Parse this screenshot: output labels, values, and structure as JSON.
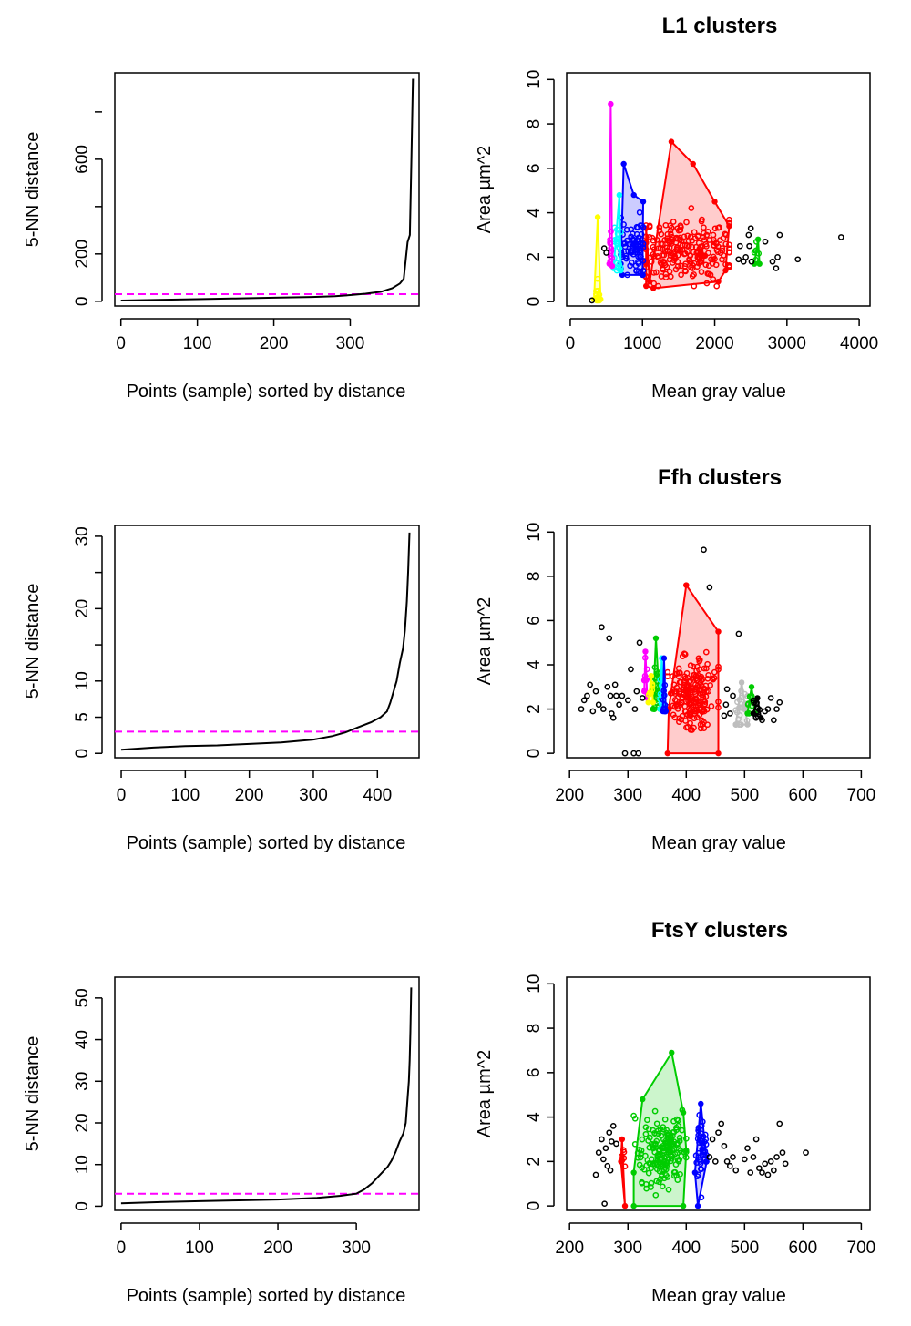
{
  "chart_data": [
    {
      "type": "line",
      "xlabel": "Points (sample) sorted by distance",
      "ylabel": "5-NN distance",
      "xticks": [
        0,
        100,
        200,
        300
      ],
      "yticks": [
        0,
        200,
        600
      ],
      "xlim": [
        -8,
        390
      ],
      "ylim": [
        -20,
        965
      ],
      "threshold": 30,
      "threshold_color": "#ff00ff",
      "series": [
        {
          "x": [
            0,
            50,
            100,
            150,
            200,
            250,
            280,
            300,
            320,
            340,
            355,
            365,
            370,
            375,
            378,
            380,
            382
          ],
          "y": [
            3,
            6,
            9,
            12,
            15,
            18,
            21,
            26,
            32,
            40,
            55,
            75,
            95,
            250,
            280,
            600,
            940
          ]
        }
      ]
    },
    {
      "type": "scatter",
      "title": "L1 clusters",
      "xlabel": "Mean gray value",
      "ylabel": "Area µm^2",
      "xticks": [
        0,
        1000,
        2000,
        3000,
        4000
      ],
      "yticks": [
        0,
        2,
        4,
        6,
        8,
        10
      ],
      "xlim": [
        -50,
        4150
      ],
      "ylim": [
        -0.2,
        10.3
      ],
      "clusters": [
        {
          "color": "#ff0000",
          "hull": [
            [
              1100,
              0.9
            ],
            [
              1400,
              7.2
            ],
            [
              1700,
              6.2
            ],
            [
              2000,
              4.5
            ],
            [
              2200,
              3.4
            ],
            [
              2150,
              1.4
            ],
            [
              2050,
              0.9
            ],
            [
              1150,
              0.6
            ],
            [
              1050,
              0.7
            ],
            [
              1050,
              3.3
            ]
          ],
          "cx": 1600,
          "cy": 2.3,
          "sx": 350,
          "sy": 0.7,
          "n": 240,
          "ymin": 0.7,
          "ymax": 4.4,
          "seed": 11
        },
        {
          "color": "#0000ff",
          "hull": [
            [
              700,
              1.7
            ],
            [
              740,
              6.2
            ],
            [
              880,
              4.8
            ],
            [
              1010,
              4.5
            ],
            [
              1000,
              1.2
            ],
            [
              720,
              1.2
            ]
          ],
          "cx": 860,
          "cy": 2.5,
          "sx": 90,
          "sy": 0.6,
          "n": 75,
          "ymin": 1.2,
          "ymax": 4.4,
          "seed": 22
        },
        {
          "color": "#00ffff",
          "hull": [
            [
              600,
              1.5
            ],
            [
              680,
              4.8
            ],
            [
              700,
              1.4
            ]
          ],
          "cx": 650,
          "cy": 2.2,
          "sx": 25,
          "sy": 0.6,
          "n": 18,
          "ymin": 1.4,
          "ymax": 4.6,
          "seed": 33
        },
        {
          "color": "#ff00ff",
          "hull": [
            [
              540,
              1.7
            ],
            [
              560,
              8.9
            ],
            [
              580,
              1.6
            ]
          ],
          "cx": 560,
          "cy": 2.2,
          "sx": 12,
          "sy": 0.4,
          "n": 10,
          "ymin": 1.5,
          "ymax": 3.2,
          "seed": 44
        },
        {
          "color": "#ffff00",
          "hull": [
            [
              330,
              0.1
            ],
            [
              380,
              3.8
            ],
            [
              420,
              0.1
            ]
          ],
          "cx": 380,
          "cy": 0.3,
          "sx": 20,
          "sy": 0.3,
          "n": 12,
          "ymin": 0.05,
          "ymax": 2.4,
          "seed": 55
        },
        {
          "color": "#00cc00",
          "hull": [
            [
              2550,
              1.7
            ],
            [
              2600,
              2.8
            ],
            [
              2620,
              1.7
            ]
          ],
          "cx": 2580,
          "cy": 2.0,
          "sx": 20,
          "sy": 0.3,
          "n": 6,
          "ymin": 1.7,
          "ymax": 2.8,
          "seed": 66
        }
      ],
      "noise": [
        [
          300,
          0.05
        ],
        [
          470,
          2.4
        ],
        [
          500,
          2.2
        ],
        [
          2330,
          1.9
        ],
        [
          2350,
          2.5
        ],
        [
          2400,
          1.8
        ],
        [
          2430,
          2.0
        ],
        [
          2470,
          3.0
        ],
        [
          2480,
          2.5
        ],
        [
          2500,
          3.3
        ],
        [
          2510,
          1.8
        ],
        [
          2700,
          2.7
        ],
        [
          2800,
          1.8
        ],
        [
          2850,
          1.5
        ],
        [
          2870,
          2.0
        ],
        [
          2900,
          3.0
        ],
        [
          3150,
          1.9
        ],
        [
          3750,
          2.9
        ]
      ]
    },
    {
      "type": "line",
      "xlabel": "Points (sample) sorted by distance",
      "ylabel": "5-NN distance",
      "xticks": [
        0,
        100,
        200,
        300,
        400
      ],
      "yticks": [
        0,
        5,
        10,
        20,
        30
      ],
      "xlim": [
        -10,
        465
      ],
      "ylim": [
        -0.6,
        31.5
      ],
      "threshold": 3,
      "threshold_color": "#ff00ff",
      "series": [
        {
          "x": [
            0,
            50,
            100,
            150,
            200,
            250,
            300,
            330,
            350,
            370,
            390,
            405,
            415,
            420,
            425,
            430,
            435,
            440,
            443,
            446,
            448,
            450
          ],
          "y": [
            0.5,
            0.8,
            1.0,
            1.1,
            1.3,
            1.5,
            1.9,
            2.4,
            2.9,
            3.6,
            4.3,
            5.0,
            5.8,
            7,
            8.5,
            10,
            12.5,
            14.5,
            17,
            21,
            25,
            30.5
          ]
        }
      ]
    },
    {
      "type": "scatter",
      "title": "Ffh clusters",
      "xlabel": "Mean gray value",
      "ylabel": "Area µm^2",
      "xticks": [
        200,
        300,
        400,
        500,
        600,
        700
      ],
      "yticks": [
        0,
        2,
        4,
        6,
        8,
        10
      ],
      "xlim": [
        195,
        715
      ],
      "ylim": [
        -0.2,
        10.3
      ],
      "clusters": [
        {
          "color": "#ff0000",
          "hull": [
            [
              370,
              2.0
            ],
            [
              400,
              7.6
            ],
            [
              455,
              5.5
            ],
            [
              455,
              0.0
            ],
            [
              368,
              0.0
            ]
          ],
          "cx": 410,
          "cy": 2.6,
          "sx": 22,
          "sy": 0.8,
          "n": 200,
          "ymin": 0.1,
          "ymax": 5.6,
          "seed": 77
        },
        {
          "color": "#bebebe",
          "hull": [
            [
              485,
              1.3
            ],
            [
              495,
              3.2
            ],
            [
              505,
              1.3
            ]
          ],
          "cx": 495,
          "cy": 2.0,
          "sx": 7,
          "sy": 0.4,
          "n": 25,
          "ymin": 1.3,
          "ymax": 3.2,
          "seed": 88
        },
        {
          "color": "#00cc00",
          "hull": [
            [
              343,
              2.0
            ],
            [
              348,
              5.2
            ],
            [
              355,
              2.0
            ]
          ],
          "cx": 349,
          "cy": 3.0,
          "sx": 4,
          "sy": 0.6,
          "n": 25,
          "ymin": 2.0,
          "ymax": 5.2,
          "seed": 99
        },
        {
          "color": "#00cc00",
          "hull": [
            [
              505,
              1.8
            ],
            [
              512,
              3.0
            ],
            [
              518,
              1.8
            ]
          ],
          "cx": 511,
          "cy": 2.3,
          "sx": 3,
          "sy": 0.3,
          "n": 10,
          "ymin": 1.8,
          "ymax": 3.0,
          "seed": 101
        },
        {
          "color": "#ff00ff",
          "hull": [
            [
              328,
              2.8
            ],
            [
              330,
              4.6
            ],
            [
              333,
              2.5
            ]
          ],
          "cx": 331,
          "cy": 3.3,
          "sx": 2,
          "sy": 0.5,
          "n": 10,
          "ymin": 2.5,
          "ymax": 4.6,
          "seed": 111
        },
        {
          "color": "#00ffff",
          "hull": [
            [
              355,
              2.0
            ],
            [
              358,
              4.3
            ],
            [
              362,
              2.0
            ]
          ],
          "cx": 358,
          "cy": 2.8,
          "sx": 2,
          "sy": 0.5,
          "n": 10,
          "ymin": 2.0,
          "ymax": 4.3,
          "seed": 121
        },
        {
          "color": "#0000ff",
          "hull": [
            [
              360,
              1.9
            ],
            [
              362,
              4.3
            ],
            [
              365,
              1.9
            ]
          ],
          "cx": 362,
          "cy": 2.6,
          "sx": 1.5,
          "sy": 0.5,
          "n": 10,
          "ymin": 1.9,
          "ymax": 4.3,
          "seed": 131
        },
        {
          "color": "#ffff00",
          "hull": [
            [
              335,
              2.3
            ],
            [
              340,
              3.5
            ],
            [
              343,
              2.3
            ]
          ],
          "cx": 339,
          "cy": 2.8,
          "sx": 2,
          "sy": 0.3,
          "n": 6,
          "ymin": 2.3,
          "ymax": 3.5,
          "seed": 141
        },
        {
          "color": "#000000",
          "hull": [
            [
              515,
              1.8
            ],
            [
              522,
              2.5
            ],
            [
              528,
              1.6
            ]
          ],
          "cx": 521,
          "cy": 2.0,
          "sx": 3,
          "sy": 0.3,
          "n": 10,
          "ymin": 1.6,
          "ymax": 2.5,
          "seed": 151
        }
      ],
      "noise": [
        [
          220,
          2.0
        ],
        [
          225,
          2.4
        ],
        [
          230,
          2.6
        ],
        [
          235,
          3.1
        ],
        [
          240,
          1.9
        ],
        [
          245,
          2.8
        ],
        [
          250,
          2.2
        ],
        [
          255,
          5.7
        ],
        [
          258,
          2.0
        ],
        [
          265,
          3.0
        ],
        [
          268,
          5.2
        ],
        [
          270,
          2.6
        ],
        [
          272,
          1.8
        ],
        [
          275,
          1.6
        ],
        [
          278,
          3.1
        ],
        [
          280,
          2.6
        ],
        [
          285,
          2.2
        ],
        [
          290,
          2.6
        ],
        [
          295,
          0.0
        ],
        [
          300,
          2.4
        ],
        [
          305,
          3.8
        ],
        [
          310,
          0.0
        ],
        [
          312,
          2.0
        ],
        [
          315,
          2.8
        ],
        [
          318,
          0.0
        ],
        [
          320,
          5.0
        ],
        [
          325,
          2.5
        ],
        [
          430,
          9.2
        ],
        [
          440,
          7.5
        ],
        [
          470,
          2.9
        ],
        [
          475,
          1.8
        ],
        [
          480,
          2.6
        ],
        [
          490,
          5.4
        ],
        [
          530,
          1.5
        ],
        [
          535,
          1.9
        ],
        [
          540,
          2.0
        ],
        [
          545,
          2.5
        ],
        [
          550,
          1.5
        ],
        [
          555,
          2.0
        ],
        [
          560,
          2.3
        ],
        [
          465,
          1.7
        ],
        [
          468,
          2.2
        ]
      ]
    },
    {
      "type": "line",
      "xlabel": "Points (sample) sorted by distance",
      "ylabel": "5-NN distance",
      "xticks": [
        0,
        100,
        200,
        300
      ],
      "yticks": [
        0,
        10,
        20,
        30,
        40,
        50
      ],
      "xlim": [
        -8,
        380
      ],
      "ylim": [
        -1,
        55
      ],
      "threshold": 3,
      "threshold_color": "#ff00ff",
      "series": [
        {
          "x": [
            0,
            50,
            100,
            150,
            200,
            250,
            280,
            300,
            310,
            320,
            330,
            340,
            345,
            350,
            355,
            360,
            363,
            365,
            367,
            368,
            369,
            370
          ],
          "y": [
            0.7,
            1.0,
            1.2,
            1.4,
            1.6,
            2.0,
            2.5,
            3.0,
            4.0,
            5.5,
            7.5,
            9.5,
            11,
            13,
            15.5,
            17.5,
            20,
            25,
            30,
            35,
            42,
            52.5
          ]
        }
      ]
    },
    {
      "type": "scatter",
      "title": "FtsY clusters",
      "xlabel": "Mean gray value",
      "ylabel": "Area µm^2",
      "xticks": [
        200,
        300,
        400,
        500,
        600,
        700
      ],
      "yticks": [
        0,
        2,
        4,
        6,
        8,
        10
      ],
      "xlim": [
        195,
        715
      ],
      "ylim": [
        -0.2,
        10.3
      ],
      "clusters": [
        {
          "color": "#00cc00",
          "hull": [
            [
              310,
              1.5
            ],
            [
              325,
              4.8
            ],
            [
              375,
              6.9
            ],
            [
              395,
              4.2
            ],
            [
              400,
              2.5
            ],
            [
              395,
              0.0
            ],
            [
              310,
              0.0
            ]
          ],
          "cx": 360,
          "cy": 2.5,
          "sx": 22,
          "sy": 0.8,
          "n": 180,
          "ymin": 0.1,
          "ymax": 5.5,
          "seed": 161
        },
        {
          "color": "#0000ff",
          "hull": [
            [
              415,
              1.5
            ],
            [
              425,
              4.6
            ],
            [
              435,
              2.0
            ],
            [
              420,
              0.0
            ]
          ],
          "cx": 425,
          "cy": 2.5,
          "sx": 5,
          "sy": 0.7,
          "n": 40,
          "ymin": 0.1,
          "ymax": 4.6,
          "seed": 171
        },
        {
          "color": "#ff0000",
          "hull": [
            [
              288,
              2.0
            ],
            [
              290,
              3.0
            ],
            [
              295,
              0.0
            ]
          ],
          "cx": 291,
          "cy": 2.2,
          "sx": 2,
          "sy": 0.3,
          "n": 6,
          "ymin": 0.0,
          "ymax": 3.0,
          "seed": 181
        }
      ],
      "noise": [
        [
          245,
          1.4
        ],
        [
          250,
          2.4
        ],
        [
          255,
          3.0
        ],
        [
          258,
          2.1
        ],
        [
          260,
          0.1
        ],
        [
          262,
          2.6
        ],
        [
          265,
          1.8
        ],
        [
          268,
          3.3
        ],
        [
          270,
          1.6
        ],
        [
          272,
          2.9
        ],
        [
          275,
          3.6
        ],
        [
          280,
          2.8
        ],
        [
          440,
          2.2
        ],
        [
          445,
          3.0
        ],
        [
          450,
          2.0
        ],
        [
          455,
          3.3
        ],
        [
          460,
          3.7
        ],
        [
          465,
          2.7
        ],
        [
          470,
          2.0
        ],
        [
          475,
          1.8
        ],
        [
          480,
          2.2
        ],
        [
          485,
          1.6
        ],
        [
          500,
          2.1
        ],
        [
          505,
          2.6
        ],
        [
          510,
          1.5
        ],
        [
          515,
          2.2
        ],
        [
          520,
          3.0
        ],
        [
          525,
          1.7
        ],
        [
          530,
          1.5
        ],
        [
          535,
          1.9
        ],
        [
          540,
          1.4
        ],
        [
          545,
          2.0
        ],
        [
          550,
          1.6
        ],
        [
          555,
          2.2
        ],
        [
          560,
          3.7
        ],
        [
          565,
          2.4
        ],
        [
          570,
          1.9
        ],
        [
          605,
          2.4
        ]
      ]
    }
  ]
}
